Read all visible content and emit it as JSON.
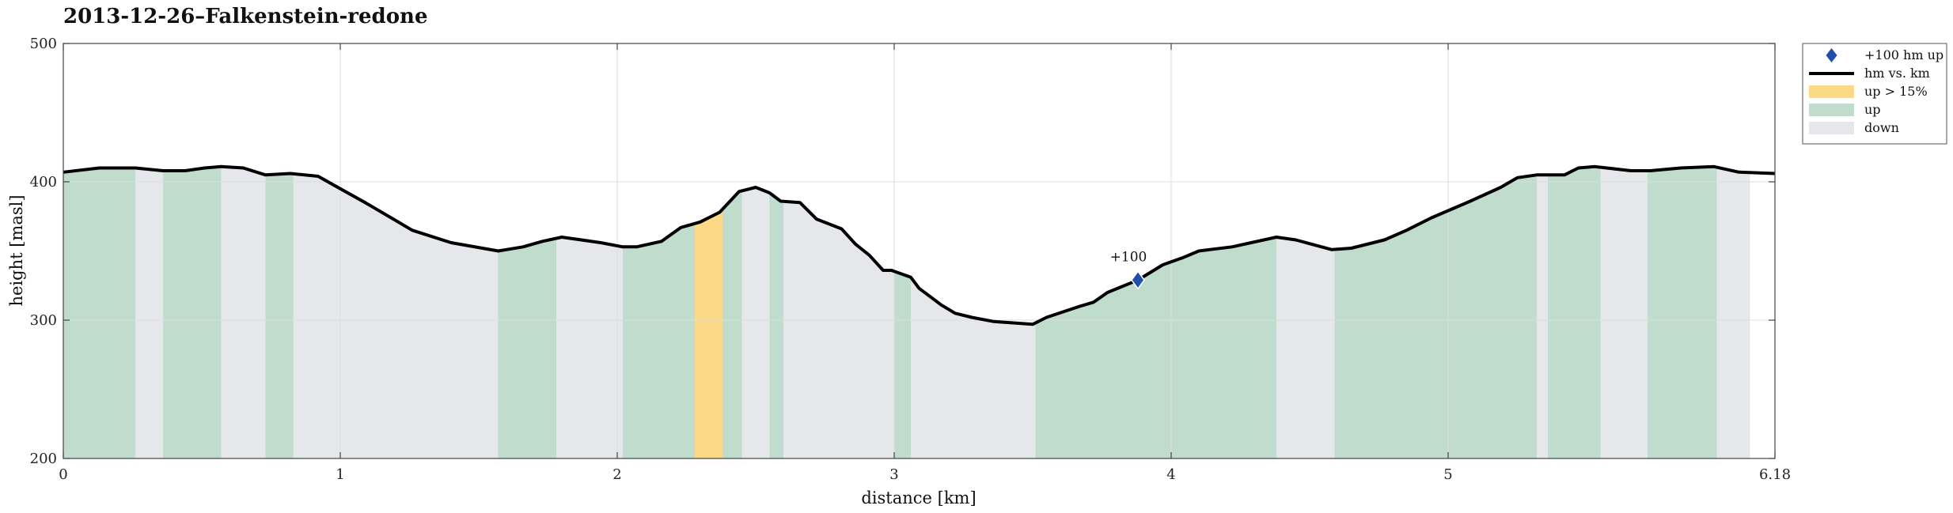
{
  "chart_data": {
    "type": "area",
    "title": "2013-12-26–Falkenstein-redone",
    "xlabel": "distance [km]",
    "ylabel": "height [masl]",
    "xlim": [
      0,
      6.18
    ],
    "ylim": [
      200,
      500
    ],
    "x_ticks": [
      "0",
      "1",
      "2",
      "3",
      "4",
      "5",
      "6.18"
    ],
    "y_ticks": [
      "200",
      "300",
      "400",
      "500"
    ],
    "grid": true,
    "legend_position": "outside-top-right",
    "legend": [
      {
        "label": "+100 hm up",
        "kind": "marker",
        "color": "#1f4fa8"
      },
      {
        "label": "hm vs. km",
        "kind": "line",
        "color": "#000000"
      },
      {
        "label": "up > 15%",
        "kind": "patch",
        "color": "#fbd987"
      },
      {
        "label": "up",
        "kind": "patch",
        "color": "#c0dccd"
      },
      {
        "label": "down",
        "kind": "patch",
        "color": "#e6e7ea"
      }
    ],
    "colors": {
      "line": "#000000",
      "steep": "#fbd987",
      "up": "#c0dccd",
      "down": "#e6e7ea",
      "marker": "#1f4fa8",
      "grid": "#dcdcdc"
    },
    "series": [
      {
        "name": "hm vs. km",
        "x": [
          0,
          0.13,
          0.26,
          0.36,
          0.44,
          0.51,
          0.57,
          0.65,
          0.73,
          0.82,
          0.92,
          1.0,
          1.09,
          1.26,
          1.4,
          1.57,
          1.66,
          1.73,
          1.8,
          1.94,
          2.02,
          2.07,
          2.16,
          2.23,
          2.3,
          2.37,
          2.44,
          2.5,
          2.55,
          2.59,
          2.66,
          2.72,
          2.81,
          2.86,
          2.91,
          2.96,
          2.99,
          3.06,
          3.09,
          3.17,
          3.22,
          3.28,
          3.36,
          3.5,
          3.55,
          3.67,
          3.72,
          3.77,
          3.88,
          3.97,
          4.04,
          4.1,
          4.22,
          4.38,
          4.45,
          4.58,
          4.65,
          4.77,
          4.85,
          4.94,
          5.08,
          5.19,
          5.25,
          5.32,
          5.42,
          5.47,
          5.53,
          5.66,
          5.73,
          5.84,
          5.96,
          6.05,
          6.18
        ],
        "y": [
          407,
          410,
          410,
          408,
          408,
          410,
          411,
          410,
          405,
          406,
          404,
          395,
          385,
          365,
          356,
          350,
          353,
          357,
          360,
          356,
          353,
          353,
          357,
          367,
          371,
          378,
          393,
          396,
          392,
          386,
          385,
          373,
          366,
          355,
          347,
          336,
          336,
          331,
          323,
          311,
          305,
          302,
          299,
          297,
          302,
          310,
          313,
          320,
          329,
          340,
          345,
          350,
          353,
          360,
          358,
          351,
          352,
          358,
          365,
          374,
          386,
          396,
          403,
          405,
          405,
          410,
          411,
          408,
          408,
          410,
          411,
          407,
          406
        ]
      }
    ],
    "regions": [
      {
        "from": 0.0,
        "to": 0.26,
        "type": "up"
      },
      {
        "from": 0.26,
        "to": 0.36,
        "type": "down"
      },
      {
        "from": 0.36,
        "to": 0.57,
        "type": "up"
      },
      {
        "from": 0.57,
        "to": 0.73,
        "type": "down"
      },
      {
        "from": 0.73,
        "to": 0.83,
        "type": "up"
      },
      {
        "from": 0.83,
        "to": 1.57,
        "type": "down"
      },
      {
        "from": 1.57,
        "to": 1.78,
        "type": "up"
      },
      {
        "from": 1.78,
        "to": 2.02,
        "type": "down"
      },
      {
        "from": 2.02,
        "to": 2.28,
        "type": "up"
      },
      {
        "from": 2.28,
        "to": 2.38,
        "type": "steep"
      },
      {
        "from": 2.38,
        "to": 2.45,
        "type": "up"
      },
      {
        "from": 2.45,
        "to": 2.55,
        "type": "down"
      },
      {
        "from": 2.55,
        "to": 2.6,
        "type": "up"
      },
      {
        "from": 2.6,
        "to": 3.0,
        "type": "down"
      },
      {
        "from": 3.0,
        "to": 3.06,
        "type": "up"
      },
      {
        "from": 3.06,
        "to": 3.51,
        "type": "down"
      },
      {
        "from": 3.51,
        "to": 4.38,
        "type": "up"
      },
      {
        "from": 4.38,
        "to": 4.59,
        "type": "down"
      },
      {
        "from": 4.59,
        "to": 5.32,
        "type": "up"
      },
      {
        "from": 5.32,
        "to": 5.36,
        "type": "down"
      },
      {
        "from": 5.36,
        "to": 5.55,
        "type": "up"
      },
      {
        "from": 5.55,
        "to": 5.72,
        "type": "down"
      },
      {
        "from": 5.72,
        "to": 5.97,
        "type": "up"
      },
      {
        "from": 5.97,
        "to": 6.09,
        "type": "down"
      }
    ],
    "markers": [
      {
        "x": 3.88,
        "y": 329,
        "label": "+100"
      }
    ]
  }
}
